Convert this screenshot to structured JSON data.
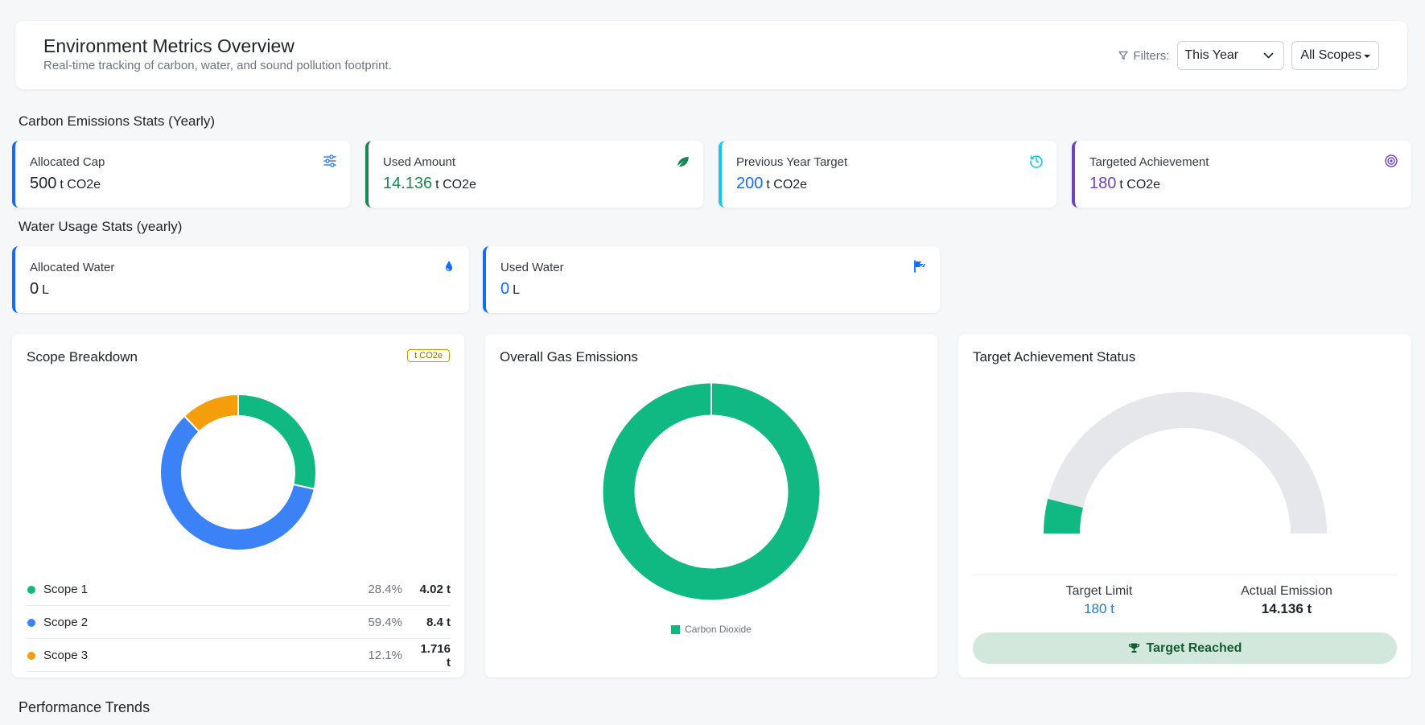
{
  "header": {
    "title": "Environment Metrics Overview",
    "subtitle": "Real-time tracking of carbon, water, and sound pollution footprint.",
    "filters_label": "Filters:",
    "year_select": "This Year",
    "scope_select": "All Scopes"
  },
  "carbon": {
    "section_title": "Carbon Emissions Stats (Yearly)",
    "cards": [
      {
        "label": "Allocated Cap",
        "value": "500",
        "unit": "t CO2e",
        "icon": "sliders-icon",
        "color": "#212529",
        "accent": "#0d6efd"
      },
      {
        "label": "Used Amount",
        "value": "14.136",
        "unit": "t CO2e",
        "icon": "leaf-icon",
        "color": "#198754",
        "accent": "#198754"
      },
      {
        "label": "Previous Year Target",
        "value": "200",
        "unit": "t CO2e",
        "icon": "history-icon",
        "color": "#0d6efd",
        "accent": "#0dcaf0"
      },
      {
        "label": "Targeted Achievement",
        "value": "180",
        "unit": "t CO2e",
        "icon": "target-icon",
        "color": "#6f42c1",
        "accent": "#6f42c1"
      }
    ]
  },
  "water": {
    "section_title": "Water Usage Stats (yearly)",
    "cards": [
      {
        "label": "Allocated Water",
        "value": "0",
        "unit": "L",
        "icon": "droplet-icon",
        "color": "#212529"
      },
      {
        "label": "Used Water",
        "value": "0",
        "unit": "L",
        "icon": "faucet-icon",
        "color": "#0d6efd"
      }
    ]
  },
  "scope_breakdown": {
    "title": "Scope Breakdown",
    "unit_badge": "t CO2e",
    "items": [
      {
        "name": "Scope 1",
        "pct": "28.4%",
        "value": "4.02 t",
        "color": "#10b981"
      },
      {
        "name": "Scope 2",
        "pct": "59.4%",
        "value": "8.4 t",
        "color": "#3b82f6"
      },
      {
        "name": "Scope 3",
        "pct": "12.1%",
        "value": "1.716 t",
        "color": "#f59e0b"
      }
    ]
  },
  "gas_emissions": {
    "title": "Overall Gas Emissions",
    "legend": "Carbon Dioxide",
    "color": "#10b981"
  },
  "target_status": {
    "title": "Target Achievement Status",
    "target_limit_label": "Target Limit",
    "target_limit_value": "180 t",
    "actual_label": "Actual Emission",
    "actual_value": "14.136 t",
    "badge": "Target Reached",
    "achieved_fraction": 0.0785
  },
  "chart_data": [
    {
      "type": "pie",
      "title": "Scope Breakdown",
      "categories": [
        "Scope 1",
        "Scope 2",
        "Scope 3"
      ],
      "values": [
        4.02,
        8.4,
        1.716
      ],
      "colors": [
        "#10b981",
        "#3b82f6",
        "#f59e0b"
      ]
    },
    {
      "type": "pie",
      "title": "Overall Gas Emissions",
      "categories": [
        "Carbon Dioxide"
      ],
      "values": [
        100
      ],
      "colors": [
        "#10b981"
      ]
    },
    {
      "type": "gauge",
      "title": "Target Achievement Status",
      "value": 14.136,
      "max": 180
    }
  ],
  "trends": {
    "section_title": "Performance Trends"
  }
}
